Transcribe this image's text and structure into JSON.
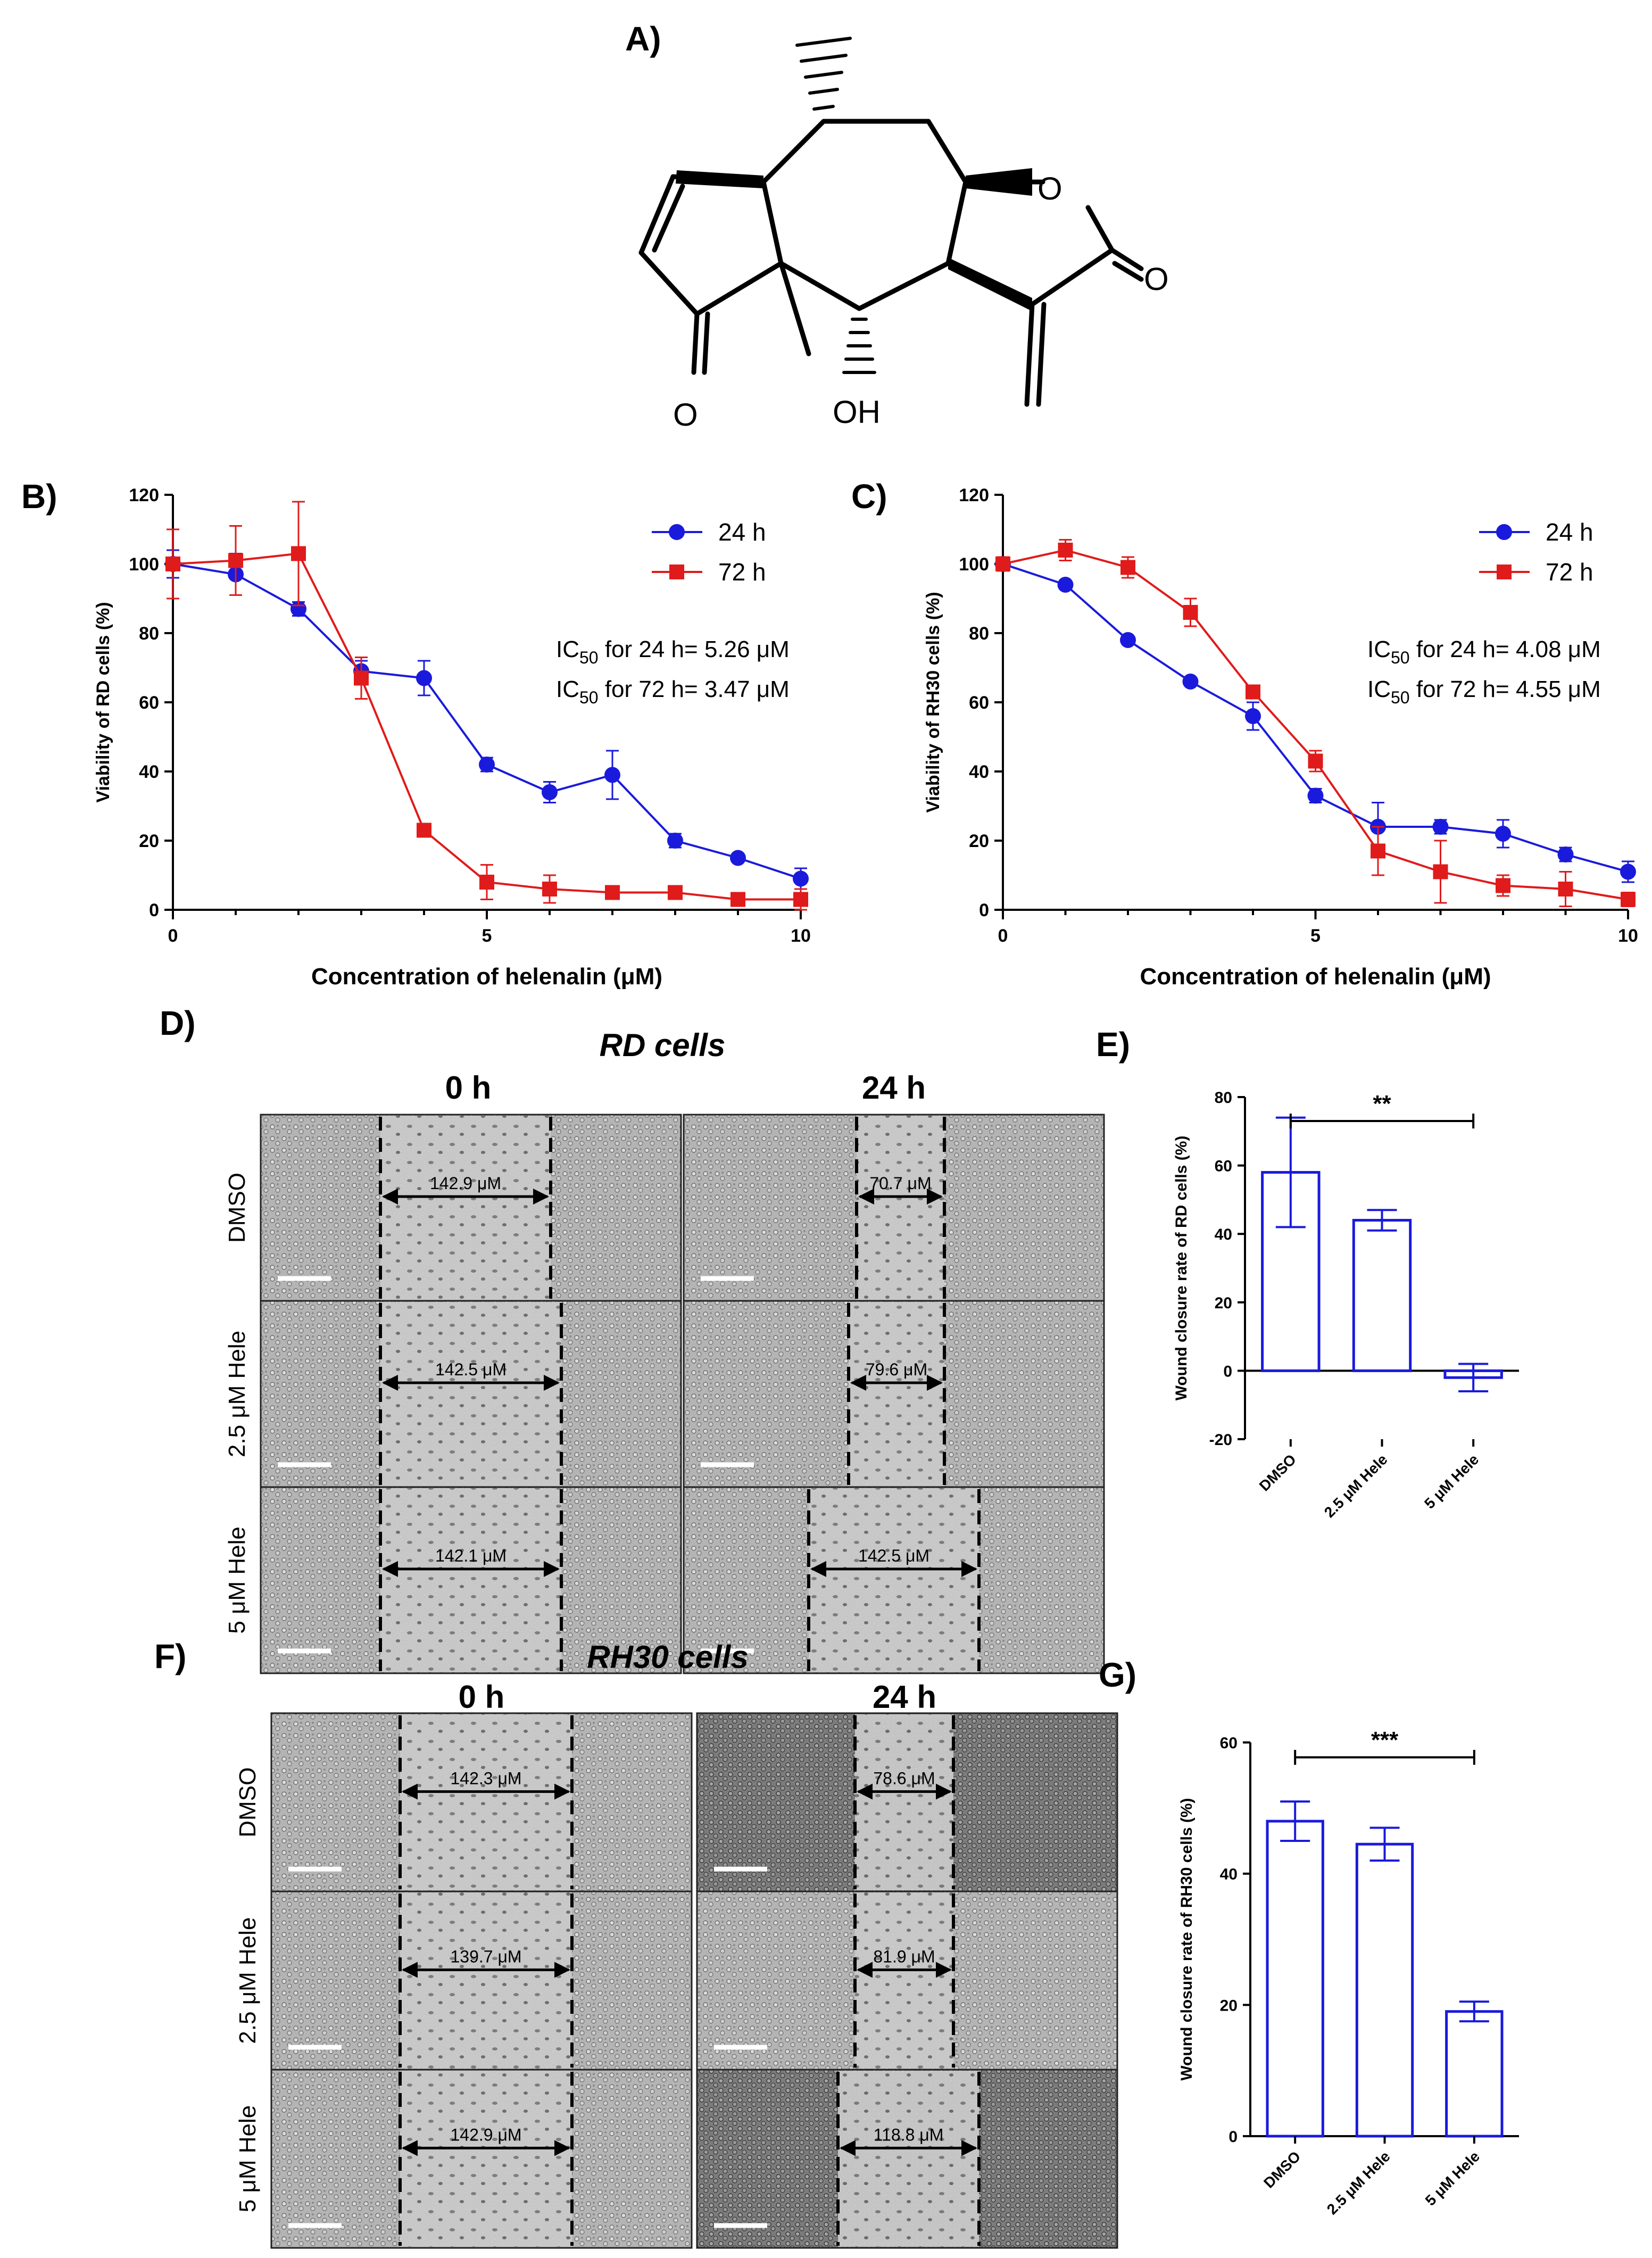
{
  "panels": {
    "A": "A)",
    "B": "B)",
    "C": "C)",
    "D": "D)",
    "E": "E)",
    "F": "F)",
    "G": "G)"
  },
  "structure": {
    "atoms": [
      "O",
      "O",
      "O",
      "OH"
    ]
  },
  "chart_data": [
    {
      "id": "B",
      "type": "line",
      "title": "",
      "xlabel": "Concentration of helenalin (μM)",
      "ylabel": "Viability of RD cells (%)",
      "xlim": [
        0,
        10
      ],
      "ylim": [
        0,
        120
      ],
      "xticks": [
        0,
        5,
        10
      ],
      "yticks": [
        0,
        20,
        40,
        60,
        80,
        100,
        120
      ],
      "legend": "top-right",
      "annotations": [
        {
          "prefix": "IC",
          "sub": "50",
          "rest": " for 24 h= 5.26 μM"
        },
        {
          "prefix": "IC",
          "sub": "50",
          "rest": " for 72 h= 3.47 μM"
        }
      ],
      "series": [
        {
          "name": "24 h",
          "color": "#1a1adc",
          "marker": "circle",
          "x": [
            0,
            1,
            2,
            3,
            4,
            5,
            6,
            7,
            8,
            9,
            10
          ],
          "values": [
            100,
            97,
            87,
            69,
            67,
            42,
            34,
            39,
            20,
            15,
            9
          ],
          "err": [
            4,
            6,
            2,
            3,
            5,
            2,
            3,
            7,
            2,
            1,
            3
          ]
        },
        {
          "name": "72 h",
          "color": "#e01b1b",
          "marker": "square",
          "x": [
            0,
            1,
            2,
            3,
            4,
            5,
            6,
            7,
            8,
            9,
            10
          ],
          "values": [
            100,
            101,
            103,
            67,
            23,
            8,
            6,
            5,
            5,
            3,
            3
          ],
          "err": [
            10,
            10,
            15,
            6,
            1,
            5,
            4,
            1,
            1,
            1,
            3
          ]
        }
      ]
    },
    {
      "id": "C",
      "type": "line",
      "title": "",
      "xlabel": "Concentration of helenalin (μM)",
      "ylabel": "Viability of RH30 cells (%)",
      "xlim": [
        0,
        10
      ],
      "ylim": [
        0,
        120
      ],
      "xticks": [
        0,
        5,
        10
      ],
      "yticks": [
        0,
        20,
        40,
        60,
        80,
        100,
        120
      ],
      "legend": "top-right",
      "annotations": [
        {
          "prefix": "IC",
          "sub": "50",
          "rest": " for 24 h= 4.08 μM"
        },
        {
          "prefix": "IC",
          "sub": "50",
          "rest": " for 72 h= 4.55 μM"
        }
      ],
      "series": [
        {
          "name": "24 h",
          "color": "#1a1adc",
          "marker": "circle",
          "x": [
            0,
            1,
            2,
            3,
            4,
            5,
            6,
            7,
            8,
            9,
            10
          ],
          "values": [
            100,
            94,
            78,
            66,
            56,
            33,
            24,
            24,
            22,
            16,
            11
          ],
          "err": [
            1,
            1,
            1,
            1,
            4,
            2,
            7,
            2,
            4,
            2,
            3
          ]
        },
        {
          "name": "72 h",
          "color": "#e01b1b",
          "marker": "square",
          "x": [
            0,
            1,
            2,
            3,
            4,
            5,
            6,
            7,
            8,
            9,
            10
          ],
          "values": [
            100,
            104,
            99,
            86,
            63,
            43,
            17,
            11,
            7,
            6,
            3
          ],
          "err": [
            2,
            3,
            3,
            4,
            1,
            3,
            7,
            9,
            3,
            5,
            2
          ]
        }
      ]
    },
    {
      "id": "E",
      "type": "bar",
      "title": "",
      "xlabel": "",
      "ylabel": "Wound closure rate of RD cells (%)",
      "ylim": [
        -20,
        80
      ],
      "yticks": [
        -20,
        0,
        20,
        40,
        60,
        80
      ],
      "categories": [
        "DMSO",
        "2.5 μM Hele",
        "5 μM Hele"
      ],
      "values": [
        58,
        44,
        -2
      ],
      "err": [
        16,
        3,
        4
      ],
      "color": "#1a1adc",
      "significance": {
        "label": "**",
        "from": 0,
        "to": 2
      }
    },
    {
      "id": "G",
      "type": "bar",
      "title": "",
      "xlabel": "",
      "ylabel": "Wound closure rate of RH30 cells (%)",
      "ylim": [
        0,
        60
      ],
      "yticks": [
        0,
        20,
        40,
        60
      ],
      "categories": [
        "DMSO",
        "2.5 μM Hele",
        "5 μM Hele"
      ],
      "values": [
        48,
        44.5,
        19
      ],
      "err": [
        3,
        2.5,
        1.5
      ],
      "color": "#1a1adc",
      "significance": {
        "label": "***",
        "from": 0,
        "to": 2
      }
    }
  ],
  "scratch": {
    "rd": {
      "title": "RD cells",
      "col_headers": [
        "0 h",
        "24 h"
      ],
      "row_labels": [
        "DMSO",
        "2.5 μM Hele",
        "5 μM Hele"
      ],
      "measurements": [
        [
          "142.9 μM",
          "70.7 μM"
        ],
        [
          "142.5 μM",
          "79.6 μM"
        ],
        [
          "142.1 μM",
          "142.5 μM"
        ]
      ]
    },
    "rh30": {
      "title": "RH30 cells",
      "col_headers": [
        "0 h",
        "24 h"
      ],
      "row_labels": [
        "DMSO",
        "2.5 μM Hele",
        "5 μM Hele"
      ],
      "measurements": [
        [
          "142.3 μM",
          "78.6 μM"
        ],
        [
          "139.7 μM",
          "81.9 μM"
        ],
        [
          "142.9 μM",
          "118.8 μM"
        ]
      ]
    }
  }
}
